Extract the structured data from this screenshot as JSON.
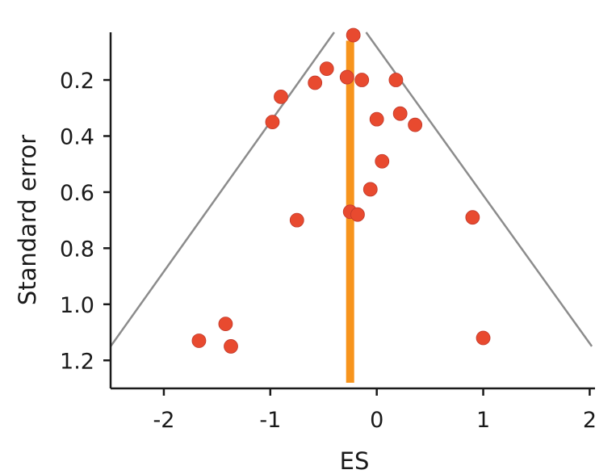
{
  "chart_data": {
    "type": "scatter",
    "subtype": "funnel-plot",
    "title": "",
    "xlabel": "ES",
    "ylabel": "Standard error",
    "xlim": [
      -2.5,
      2.05
    ],
    "ylim": [
      1.3,
      0.03
    ],
    "y_inverted": true,
    "xticks": [
      -2,
      -1,
      0,
      1,
      2
    ],
    "xtick_labels": [
      "-2",
      "-1",
      "0",
      "1",
      "2"
    ],
    "yticks": [
      0.2,
      0.4,
      0.6,
      0.8,
      1.0,
      1.2
    ],
    "ytick_labels": [
      "0.2",
      "0.4",
      "0.6",
      "0.8",
      "1.0",
      "1.2"
    ],
    "grid": false,
    "legend": "none",
    "pooled_effect": -0.25,
    "funnel": {
      "apex_se": 0.03,
      "bottom_se": 1.15,
      "left_es_at_bottom": -2.5,
      "right_es_at_bottom": 2.02
    },
    "points": [
      {
        "x": -0.22,
        "y": 0.04
      },
      {
        "x": -0.47,
        "y": 0.16
      },
      {
        "x": -0.28,
        "y": 0.19
      },
      {
        "x": -0.14,
        "y": 0.2
      },
      {
        "x": 0.18,
        "y": 0.2
      },
      {
        "x": -0.58,
        "y": 0.21
      },
      {
        "x": -0.9,
        "y": 0.26
      },
      {
        "x": 0.22,
        "y": 0.32
      },
      {
        "x": 0.0,
        "y": 0.34
      },
      {
        "x": -0.98,
        "y": 0.35
      },
      {
        "x": 0.36,
        "y": 0.36
      },
      {
        "x": 0.05,
        "y": 0.49
      },
      {
        "x": -0.06,
        "y": 0.59
      },
      {
        "x": -0.25,
        "y": 0.67
      },
      {
        "x": -0.18,
        "y": 0.68
      },
      {
        "x": 0.9,
        "y": 0.69
      },
      {
        "x": -0.75,
        "y": 0.7
      },
      {
        "x": -1.42,
        "y": 1.07
      },
      {
        "x": -1.67,
        "y": 1.13
      },
      {
        "x": -1.37,
        "y": 1.15
      },
      {
        "x": 1.0,
        "y": 1.12
      }
    ]
  },
  "colors": {
    "points": "#e84a2f",
    "pooled_line": "#f7941d",
    "funnel_lines": "#8c8c8c",
    "axes": "#1a1a1a"
  }
}
